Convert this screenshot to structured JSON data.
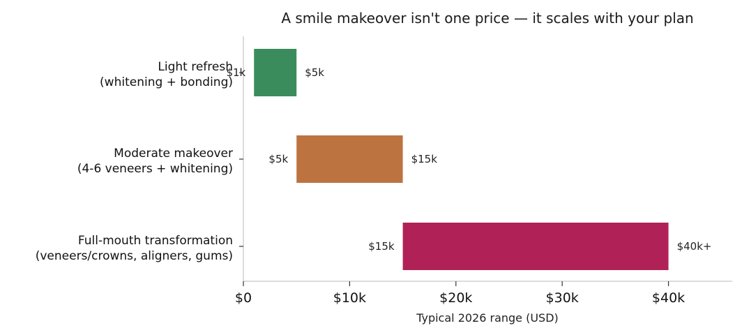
{
  "chart_data": {
    "type": "bar",
    "orientation": "horizontal-range",
    "title": "A smile makeover isn't one price — it scales with your plan",
    "xlabel": "Typical 2026 range (USD)",
    "ylabel": "",
    "xlim": [
      0,
      46000
    ],
    "x_ticks": [
      {
        "value": 0,
        "label": "$0"
      },
      {
        "value": 10000,
        "label": "$10k"
      },
      {
        "value": 20000,
        "label": "$20k"
      },
      {
        "value": 30000,
        "label": "$30k"
      },
      {
        "value": 40000,
        "label": "$40k"
      }
    ],
    "grid": false,
    "categories": [
      {
        "name": "Light refresh",
        "detail": "(whitening + bonding)",
        "low": 1000,
        "high": 5000,
        "low_label": "$1k",
        "high_label": "$5k",
        "color": "#3a8c5c"
      },
      {
        "name": "Moderate makeover",
        "detail": "(4-6 veneers + whitening)",
        "low": 5000,
        "high": 15000,
        "low_label": "$5k",
        "high_label": "$15k",
        "color": "#bd7340"
      },
      {
        "name": "Full-mouth transformation",
        "detail": "(veneers/crowns, aligners, gums)",
        "low": 15000,
        "high": 40000,
        "low_label": "$15k",
        "high_label": "$40k+",
        "color": "#b02257"
      }
    ]
  }
}
